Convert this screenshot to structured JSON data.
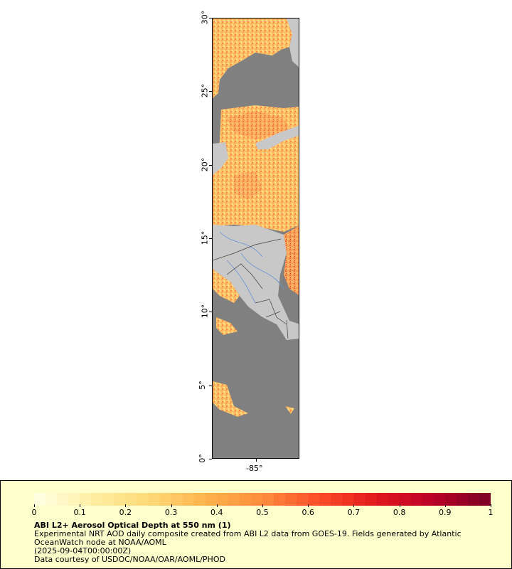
{
  "map": {
    "title": "ABI L2+ Aerosol Optical Depth at 550 nm (1)",
    "lat_labels": [
      "0°",
      "5°",
      "10°",
      "15°",
      "20°",
      "25°",
      "30°"
    ],
    "lon_labels": [
      "-85°"
    ],
    "lat_range": [
      0,
      30
    ],
    "colors": {
      "ocean_no_data": "#808080",
      "land": "#c8c8c8",
      "rivers": "#6a94d4",
      "borders": "#404040"
    }
  },
  "legend": {
    "colorbar_labels": [
      "0",
      "0.1",
      "0.2",
      "0.3",
      "0.4",
      "0.5",
      "0.6",
      "0.7",
      "0.8",
      "0.9",
      "1"
    ],
    "value_range": [
      0,
      1
    ],
    "colorbar_colors": [
      "#ffffe0",
      "#ffeda0",
      "#fed976",
      "#feb24c",
      "#fd8d3c",
      "#fc4e2a",
      "#e31a1c",
      "#bd0026",
      "#800026"
    ],
    "title": "ABI L2+ Aerosol Optical Depth at 550 nm (1)",
    "line1": "Experimental NRT AOD daily composite created from ABI L2 data from GOES-19. Fields generated by Atlantic OceanWatch node at NOAA/AOML",
    "line2": "(2025-09-04T00:00:00Z)",
    "line3": "Data courtesy of USDOC/NOAA/OAR/AOML/PHOD"
  }
}
